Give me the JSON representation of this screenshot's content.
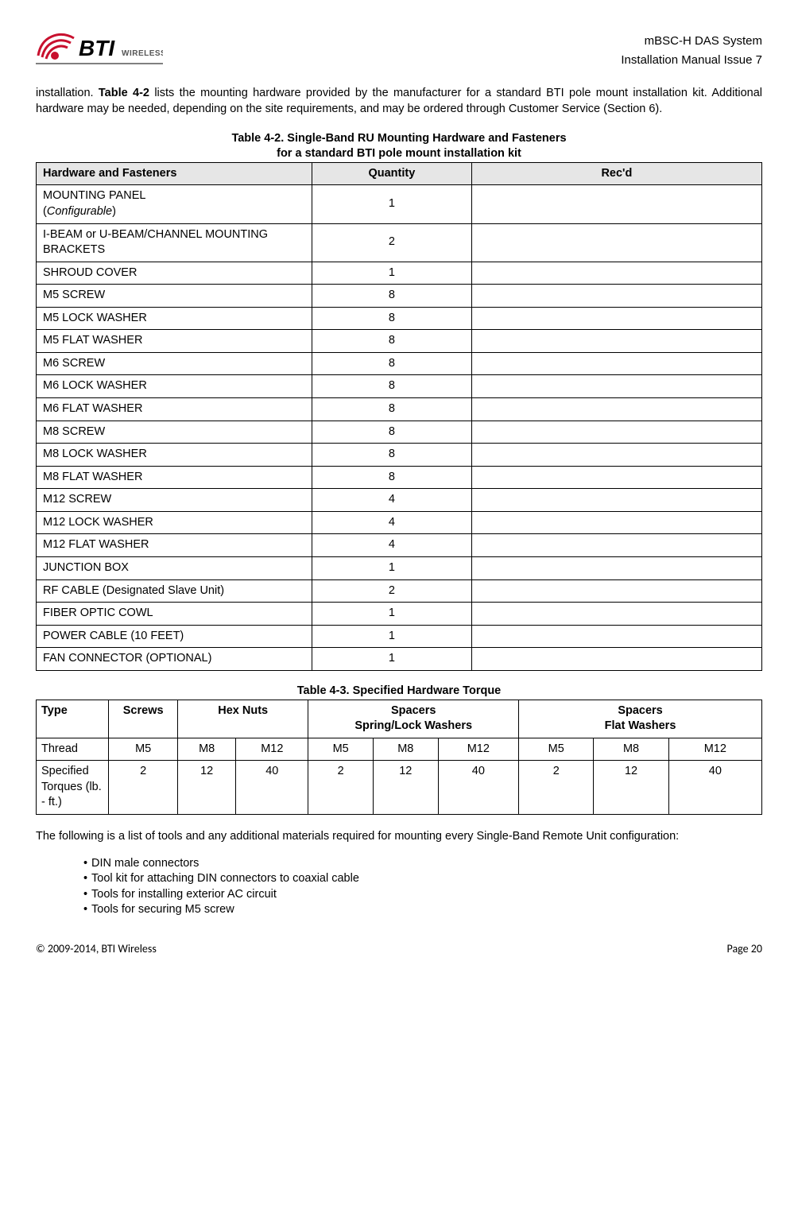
{
  "header": {
    "logo_text_main": "BTI",
    "logo_text_sub": "WIRELESS",
    "right_line1": "mBSC-H DAS System",
    "right_line2": "Installation Manual Issue 7"
  },
  "intro": {
    "pre_bold": "installation. ",
    "bold": "Table 4-2",
    "post_bold": " lists the mounting hardware provided by the manufacturer for a standard BTI pole mount installation kit. Additional hardware may be needed, depending on the site requirements, and may be ordered through Customer Service (Section 6)."
  },
  "table42": {
    "caption_line1": "Table 4-2. Single-Band RU Mounting Hardware and Fasteners",
    "caption_line2": "for a standard BTI pole mount installation kit",
    "headers": [
      "Hardware and Fasteners",
      "Quantity",
      "Rec'd"
    ],
    "rows": [
      {
        "label": "MOUNTING PANEL",
        "sub": "(Configurable)",
        "qty": "1",
        "recd": ""
      },
      {
        "label": "I-BEAM or U-BEAM/CHANNEL MOUNTING BRACKETS",
        "qty": "2",
        "recd": ""
      },
      {
        "label": "SHROUD COVER",
        "qty": "1",
        "recd": ""
      },
      {
        "label": "M5 SCREW",
        "qty": "8",
        "recd": ""
      },
      {
        "label": "M5 LOCK WASHER",
        "qty": "8",
        "recd": ""
      },
      {
        "label": "M5 FLAT WASHER",
        "qty": "8",
        "recd": ""
      },
      {
        "label": "M6 SCREW",
        "qty": "8",
        "recd": ""
      },
      {
        "label": "M6 LOCK WASHER",
        "qty": "8",
        "recd": ""
      },
      {
        "label": "M6 FLAT WASHER",
        "qty": "8",
        "recd": ""
      },
      {
        "label": "M8 SCREW",
        "qty": "8",
        "recd": ""
      },
      {
        "label": "M8 LOCK WASHER",
        "qty": "8",
        "recd": ""
      },
      {
        "label": "M8 FLAT WASHER",
        "qty": "8",
        "recd": ""
      },
      {
        "label": "M12 SCREW",
        "qty": "4",
        "recd": ""
      },
      {
        "label": "M12 LOCK WASHER",
        "qty": "4",
        "recd": ""
      },
      {
        "label": "M12 FLAT WASHER",
        "qty": "4",
        "recd": ""
      },
      {
        "label": "JUNCTION BOX",
        "qty": "1",
        "recd": ""
      },
      {
        "label": "RF CABLE (Designated Slave Unit)",
        "qty": "2",
        "recd": ""
      },
      {
        "label": "FIBER OPTIC COWL",
        "qty": "1",
        "recd": ""
      },
      {
        "label": "POWER CABLE (10 FEET)",
        "qty": "1",
        "recd": ""
      },
      {
        "label": "FAN CONNECTOR (OPTIONAL)",
        "qty": "1",
        "recd": ""
      }
    ]
  },
  "table43": {
    "caption": "Table 4-3. Specified Hardware Torque",
    "header_row1": {
      "type": "Type",
      "screws": "Screws",
      "hexnuts": "Hex Nuts",
      "spacers_spring": "Spacers\nSpring/Lock Washers",
      "spacers_flat": "Spacers\nFlat Washers"
    },
    "row_thread": {
      "label": "Thread",
      "cells": [
        "M5",
        "M8",
        "M12",
        "M5",
        "M8",
        "M12",
        "M5",
        "M8",
        "M12"
      ]
    },
    "row_torque": {
      "label": "Specified Torques (lb. - ft.)",
      "cells": [
        "2",
        "12",
        "40",
        "2",
        "12",
        "40",
        "2",
        "12",
        "40"
      ]
    },
    "col_widths_pct": [
      10,
      9.5,
      9,
      9,
      9,
      9,
      11,
      10,
      11,
      12.5
    ]
  },
  "para2": "The following is a list of tools and any additional materials required for mounting every Single-Band Remote Unit configuration:",
  "tools": [
    "DIN male connectors",
    "Tool kit for attaching DIN connectors to coaxial cable",
    "Tools for installing exterior AC circuit",
    "Tools for securing M5 screw"
  ],
  "footer": {
    "left": "© 2009-2014, BTI Wireless",
    "right_prefix": "Page ",
    "right_num": "20"
  },
  "colors": {
    "logo_red": "#c8102e",
    "table_header_bg": "#e6e6e6",
    "text": "#000000",
    "bg": "#ffffff"
  }
}
